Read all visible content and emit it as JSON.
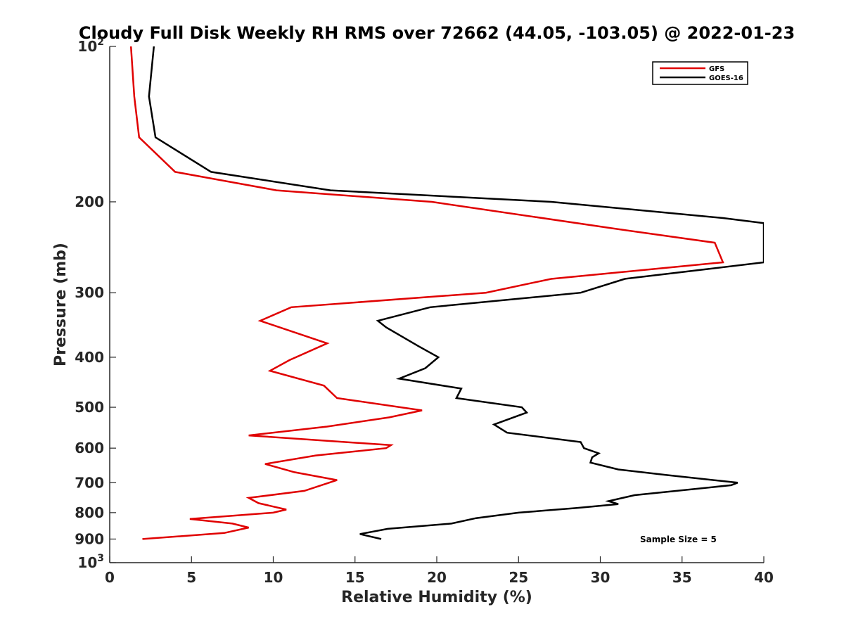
{
  "chart_data": {
    "type": "line",
    "title": "Cloudy Full Disk Weekly RH RMS over 72662 (44.05, -103.05) @ 2022-01-23",
    "xlabel": "Relative Humidity (%)",
    "ylabel": "Pressure (mb)",
    "xlim": [
      0,
      40
    ],
    "ylim": [
      100,
      1000
    ],
    "yscale": "log",
    "y_reversed": true,
    "grid": false,
    "legend_position": "top-right",
    "x_ticks": [
      0,
      5,
      10,
      15,
      20,
      25,
      30,
      35,
      40
    ],
    "x_tick_labels": [
      "0",
      "5",
      "10",
      "15",
      "20",
      "25",
      "30",
      "35",
      "40"
    ],
    "y_ticks": [
      100,
      200,
      300,
      400,
      500,
      600,
      700,
      800,
      900,
      1000
    ],
    "y_tick_labels": [
      "10^2",
      "200",
      "300",
      "400",
      "500",
      "600",
      "700",
      "800",
      "900",
      "10^3"
    ],
    "annotation": "Sample Size = 5",
    "series": [
      {
        "name": "GFS",
        "color": "#e00000",
        "points": [
          [
            1.3,
            100
          ],
          [
            1.5,
            125
          ],
          [
            1.8,
            150
          ],
          [
            4.0,
            175
          ],
          [
            10.2,
            190
          ],
          [
            19.7,
            200
          ],
          [
            30.7,
            225
          ],
          [
            37.0,
            240
          ],
          [
            37.5,
            262
          ],
          [
            27.0,
            282
          ],
          [
            23.0,
            300
          ],
          [
            11.1,
            320
          ],
          [
            9.2,
            340
          ],
          [
            13.3,
            376
          ],
          [
            11.0,
            405
          ],
          [
            9.8,
            425
          ],
          [
            13.1,
            454
          ],
          [
            13.9,
            480
          ],
          [
            19.1,
            507
          ],
          [
            17.1,
            523
          ],
          [
            13.3,
            545
          ],
          [
            8.5,
            567
          ],
          [
            17.2,
            592
          ],
          [
            16.9,
            600
          ],
          [
            12.6,
            620
          ],
          [
            9.5,
            644
          ],
          [
            11.3,
            668
          ],
          [
            13.9,
            692
          ],
          [
            11.9,
            726
          ],
          [
            8.5,
            749
          ],
          [
            9.1,
            767
          ],
          [
            10.8,
            789
          ],
          [
            10.0,
            800
          ],
          [
            4.9,
            823
          ],
          [
            7.5,
            840
          ],
          [
            8.5,
            855
          ],
          [
            7.0,
            876
          ],
          [
            2.0,
            900
          ]
        ]
      },
      {
        "name": "GOES-16",
        "color": "#000000",
        "points": [
          [
            2.7,
            100
          ],
          [
            2.4,
            125
          ],
          [
            2.8,
            150
          ],
          [
            6.2,
            175
          ],
          [
            13.5,
            190
          ],
          [
            27.0,
            200
          ],
          [
            37.5,
            215
          ],
          [
            40.0,
            220
          ],
          [
            40.0,
            262
          ],
          [
            31.5,
            282
          ],
          [
            28.8,
            300
          ],
          [
            19.6,
            320
          ],
          [
            16.4,
            340
          ],
          [
            16.9,
            350
          ],
          [
            18.9,
            381
          ],
          [
            20.1,
            400
          ],
          [
            19.3,
            420
          ],
          [
            17.7,
            440
          ],
          [
            21.5,
            460
          ],
          [
            21.2,
            480
          ],
          [
            25.2,
            500
          ],
          [
            25.5,
            512
          ],
          [
            23.5,
            540
          ],
          [
            24.3,
            560
          ],
          [
            28.8,
            584
          ],
          [
            29.0,
            600
          ],
          [
            29.9,
            614
          ],
          [
            29.5,
            625
          ],
          [
            29.4,
            640
          ],
          [
            31.1,
            660
          ],
          [
            34.0,
            676
          ],
          [
            38.4,
            700
          ],
          [
            38.0,
            708
          ],
          [
            32.1,
            740
          ],
          [
            30.5,
            760
          ],
          [
            31.1,
            770
          ],
          [
            28.5,
            784
          ],
          [
            25.0,
            800
          ],
          [
            22.4,
            820
          ],
          [
            20.9,
            840
          ],
          [
            17.0,
            860
          ],
          [
            15.3,
            880
          ],
          [
            16.6,
            900
          ]
        ]
      }
    ]
  }
}
